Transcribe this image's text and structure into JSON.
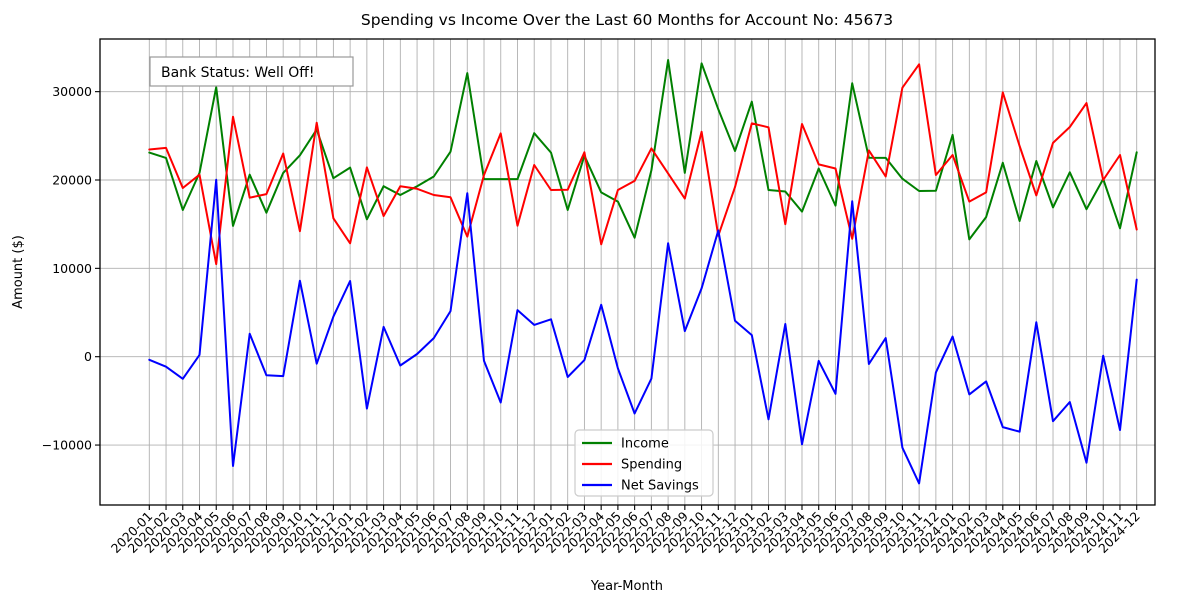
{
  "chart_data": {
    "type": "line",
    "title": "Spending vs Income Over the Last 60 Months for Account No: 45673",
    "xlabel": "Year-Month",
    "ylabel": "Amount ($)",
    "annotation": "Bank Status: Well Off!",
    "grid": true,
    "legend_position": "lower center",
    "ylim": [
      -16800,
      36000
    ],
    "yticks": [
      -10000,
      0,
      10000,
      20000,
      30000
    ],
    "ytick_labels": [
      "−10000",
      "0",
      "10000",
      "20000",
      "30000"
    ],
    "categories": [
      "2020-01",
      "2020-02",
      "2020-03",
      "2020-04",
      "2020-05",
      "2020-06",
      "2020-07",
      "2020-08",
      "2020-09",
      "2020-10",
      "2020-11",
      "2020-12",
      "2021-01",
      "2021-02",
      "2021-03",
      "2021-04",
      "2021-05",
      "2021-06",
      "2021-07",
      "2021-08",
      "2021-09",
      "2021-10",
      "2021-11",
      "2021-12",
      "2022-01",
      "2022-02",
      "2022-03",
      "2022-04",
      "2022-05",
      "2022-06",
      "2022-07",
      "2022-08",
      "2022-09",
      "2022-10",
      "2022-11",
      "2022-12",
      "2023-01",
      "2023-02",
      "2023-03",
      "2023-04",
      "2023-05",
      "2023-06",
      "2023-07",
      "2023-08",
      "2023-09",
      "2023-10",
      "2023-11",
      "2023-12",
      "2024-01",
      "2024-02",
      "2024-03",
      "2024-04",
      "2024-05",
      "2024-06",
      "2024-07",
      "2024-08",
      "2024-09",
      "2024-10",
      "2024-11",
      "2024-12"
    ],
    "series": [
      {
        "name": "Income",
        "color": "#008000",
        "values": [
          23100,
          22500,
          16600,
          20800,
          30500,
          14800,
          20600,
          16300,
          20800,
          22800,
          25700,
          20200,
          21400,
          15550,
          19300,
          18300,
          19300,
          20400,
          23200,
          32100,
          20100,
          20100,
          20100,
          25300,
          23100,
          16600,
          22750,
          18600,
          17550,
          13470,
          21100,
          33580,
          20800,
          33200,
          28000,
          23280,
          28860,
          18870,
          18700,
          16420,
          21300,
          17100,
          30940,
          22520,
          22500,
          20150,
          18750,
          18790,
          25100,
          13280,
          15800,
          21950,
          15360,
          22150,
          16900,
          20870,
          16700,
          20110,
          14530,
          23130
        ]
      },
      {
        "name": "Spending",
        "color": "#ff0000",
        "values": [
          23450,
          23630,
          19100,
          20600,
          10480,
          27170,
          18000,
          18400,
          23000,
          14200,
          26490,
          15660,
          12830,
          21430,
          15925,
          19300,
          19000,
          18300,
          18040,
          13590,
          20570,
          25280,
          14830,
          21700,
          18870,
          18900,
          23130,
          12720,
          18870,
          19900,
          23580,
          20750,
          17900,
          25460,
          13700,
          19200,
          26410,
          25960,
          15000,
          26340,
          21770,
          21300,
          13350,
          23350,
          20400,
          30450,
          33090,
          20570,
          22830,
          17550,
          18600,
          29920,
          23850,
          18260,
          24200,
          26000,
          28700,
          20000,
          22830,
          14400
        ]
      },
      {
        "name": "Net Savings",
        "color": "#0000ff",
        "values": [
          -350,
          -1130,
          -2500,
          200,
          20020,
          -12370,
          2600,
          -2100,
          -2200,
          8600,
          -790,
          4540,
          8570,
          -5880,
          3375,
          -1000,
          300,
          2100,
          5160,
          18510,
          -470,
          -5180,
          5270,
          3600,
          4230,
          -2300,
          -380,
          5880,
          -1320,
          -6430,
          -2480,
          12830,
          2900,
          7740,
          14300,
          4080,
          2450,
          -7090,
          3700,
          -9920,
          -470,
          -4200,
          17590,
          -830,
          2100,
          -10300,
          -14340,
          -1780,
          2270,
          -4270,
          -2800,
          -7970,
          -8490,
          3890,
          -7300,
          -5130,
          -12000,
          110,
          -8300,
          8730
        ]
      }
    ]
  },
  "legend": {
    "items": [
      {
        "label": "Income",
        "color": "#008000"
      },
      {
        "label": "Spending",
        "color": "#ff0000"
      },
      {
        "label": "Net Savings",
        "color": "#0000ff"
      }
    ]
  },
  "colors": {
    "background": "#ffffff",
    "axis": "#000000",
    "grid": "#b0b0b0",
    "annotation_border": "#999999",
    "legend_border": "#cccccc"
  }
}
